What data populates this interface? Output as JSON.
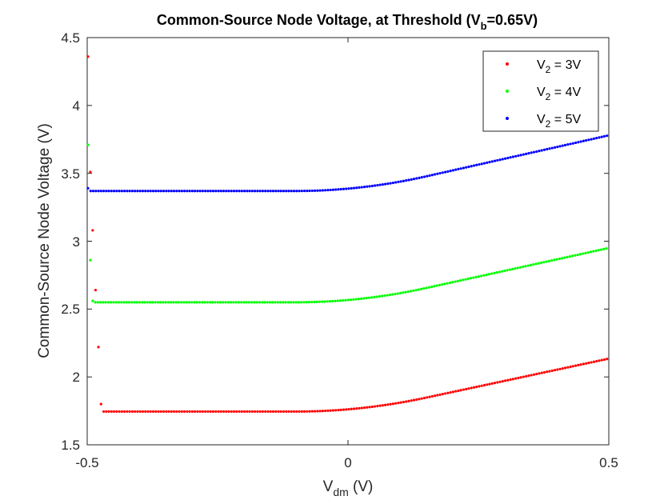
{
  "chart_data": {
    "type": "scatter",
    "title_main": "Common-Source Node Voltage, at Threshold (V",
    "title_sub": "b",
    "title_tail": "=0.65V)",
    "xlabel_main": "V",
    "xlabel_sub": "dm",
    "xlabel_tail": " (V)",
    "ylabel": "Common-Source Node Voltage (V)",
    "xlim": [
      -0.5,
      0.5
    ],
    "ylim": [
      1.5,
      4.5
    ],
    "x_ticks": [
      "-0.5",
      "0",
      "0.5"
    ],
    "y_ticks": [
      "1.5",
      "2",
      "2.5",
      "3",
      "3.5",
      "4",
      "4.5"
    ],
    "grid": false,
    "legend_position": "top-right",
    "series": [
      {
        "name_main": "V",
        "name_sub": "2",
        "name_tail": " = 3V",
        "color": "#ff0000",
        "plateau": 1.745,
        "end": 2.135,
        "outliers": [
          [
            -0.4985,
            4.36
          ],
          [
            -0.494,
            3.51
          ],
          [
            -0.4895,
            3.08
          ],
          [
            -0.484,
            2.64
          ],
          [
            -0.4785,
            2.22
          ],
          [
            -0.4735,
            1.8
          ]
        ]
      },
      {
        "name_main": "V",
        "name_sub": "2",
        "name_tail": " = 4V",
        "color": "#00ff00",
        "plateau": 2.55,
        "end": 2.95,
        "outliers": [
          [
            -0.4985,
            3.71
          ],
          [
            -0.494,
            2.86
          ],
          [
            -0.4895,
            2.56
          ]
        ]
      },
      {
        "name_main": "V",
        "name_sub": "2",
        "name_tail": " = 5V",
        "color": "#0000ff",
        "plateau": 3.37,
        "end": 3.78,
        "outliers": [
          [
            -0.4985,
            3.39
          ]
        ]
      }
    ]
  }
}
